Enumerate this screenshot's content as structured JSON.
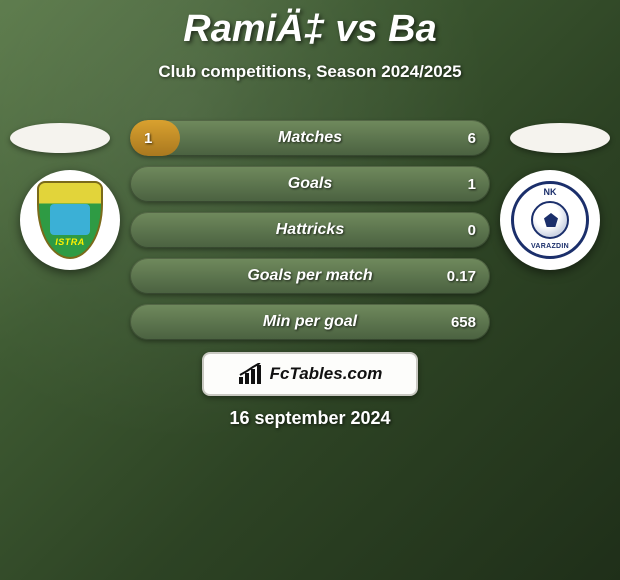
{
  "title": "RamiÄ‡ vs Ba",
  "subtitle": "Club competitions, Season 2024/2025",
  "date": "16 september 2024",
  "brand_text": "FcTables.com",
  "colors": {
    "accent_fill": "#d9a12f",
    "row_bg": "#5c7a4a",
    "text": "#ffffff"
  },
  "club_left": {
    "name": "Istra",
    "crest_colors": [
      "#e2d43a",
      "#2e9b44",
      "#3bb0d6"
    ]
  },
  "club_right": {
    "name": "NK Varteks Varazdin",
    "top_text": "NK",
    "bottom_text": "VARAZDIN",
    "crest_color": "#1b2f6b"
  },
  "rows": [
    {
      "label": "Matches",
      "left": "1",
      "right": "6",
      "fill_left_pct": 14,
      "fill_right_pct": 0
    },
    {
      "label": "Goals",
      "left": "",
      "right": "1",
      "fill_left_pct": 0,
      "fill_right_pct": 0
    },
    {
      "label": "Hattricks",
      "left": "",
      "right": "0",
      "fill_left_pct": 0,
      "fill_right_pct": 0
    },
    {
      "label": "Goals per match",
      "left": "",
      "right": "0.17",
      "fill_left_pct": 0,
      "fill_right_pct": 0
    },
    {
      "label": "Min per goal",
      "left": "",
      "right": "658",
      "fill_left_pct": 0,
      "fill_right_pct": 0
    }
  ]
}
